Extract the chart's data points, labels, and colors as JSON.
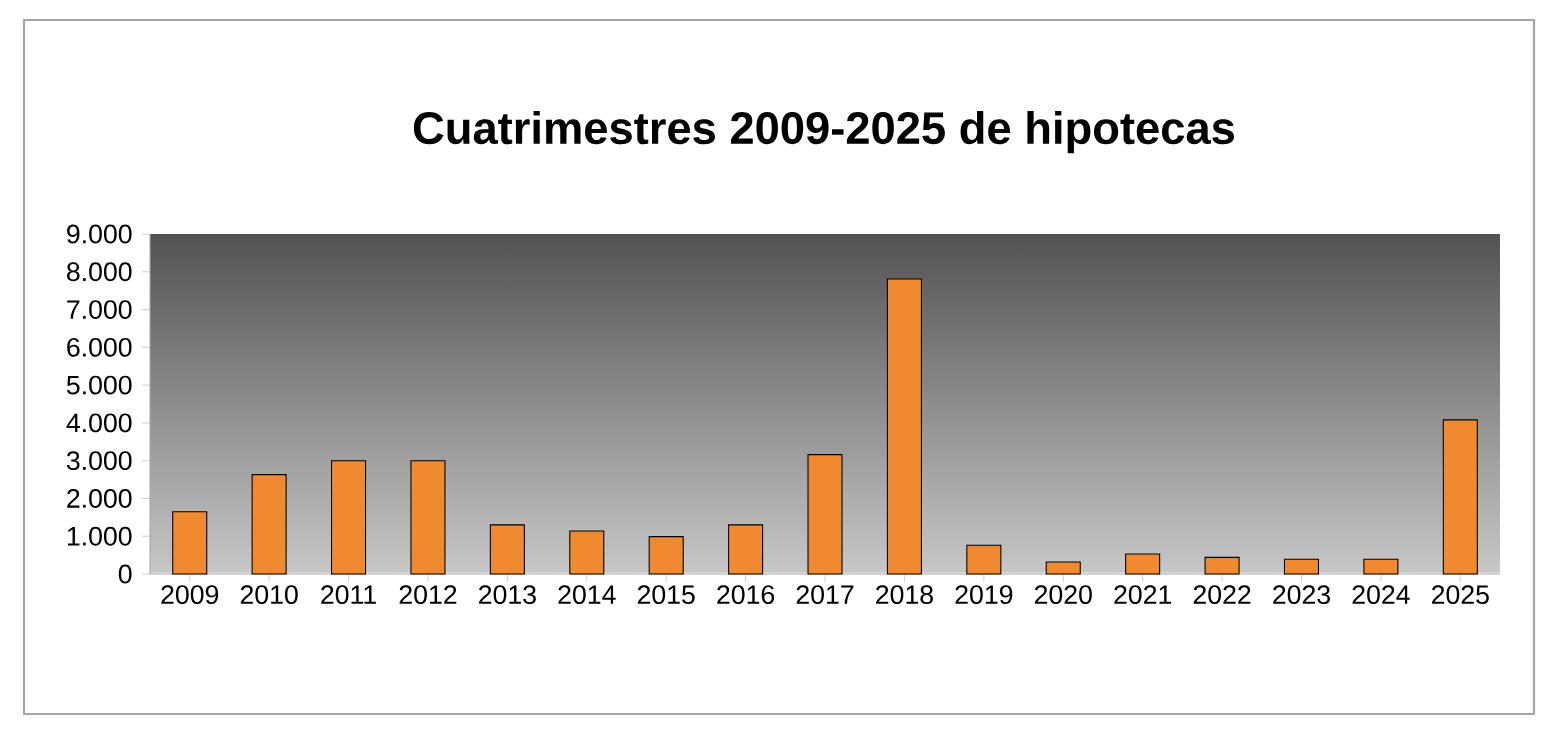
{
  "chart_data": {
    "type": "bar",
    "title": "Cuatrimestres 2009-2025 de hipotecas",
    "categories": [
      "2009",
      "2010",
      "2011",
      "2012",
      "2013",
      "2014",
      "2015",
      "2016",
      "2017",
      "2018",
      "2019",
      "2020",
      "2021",
      "2022",
      "2023",
      "2024",
      "2025"
    ],
    "values": [
      1650,
      2630,
      3000,
      3000,
      1300,
      1140,
      990,
      1300,
      3160,
      7810,
      760,
      320,
      530,
      440,
      390,
      390,
      4080
    ],
    "color": "#f08a30",
    "ylim": [
      0,
      9000
    ],
    "yticks": [
      {
        "value": 0,
        "label": "0"
      },
      {
        "value": 1000,
        "label": "1.000"
      },
      {
        "value": 2000,
        "label": "2.000"
      },
      {
        "value": 3000,
        "label": "3.000"
      },
      {
        "value": 4000,
        "label": "4.000"
      },
      {
        "value": 5000,
        "label": "5.000"
      },
      {
        "value": 6000,
        "label": "6.000"
      },
      {
        "value": 7000,
        "label": "7.000"
      },
      {
        "value": 8000,
        "label": "8.000"
      },
      {
        "value": 9000,
        "label": "9.000"
      }
    ],
    "grid": false
  }
}
